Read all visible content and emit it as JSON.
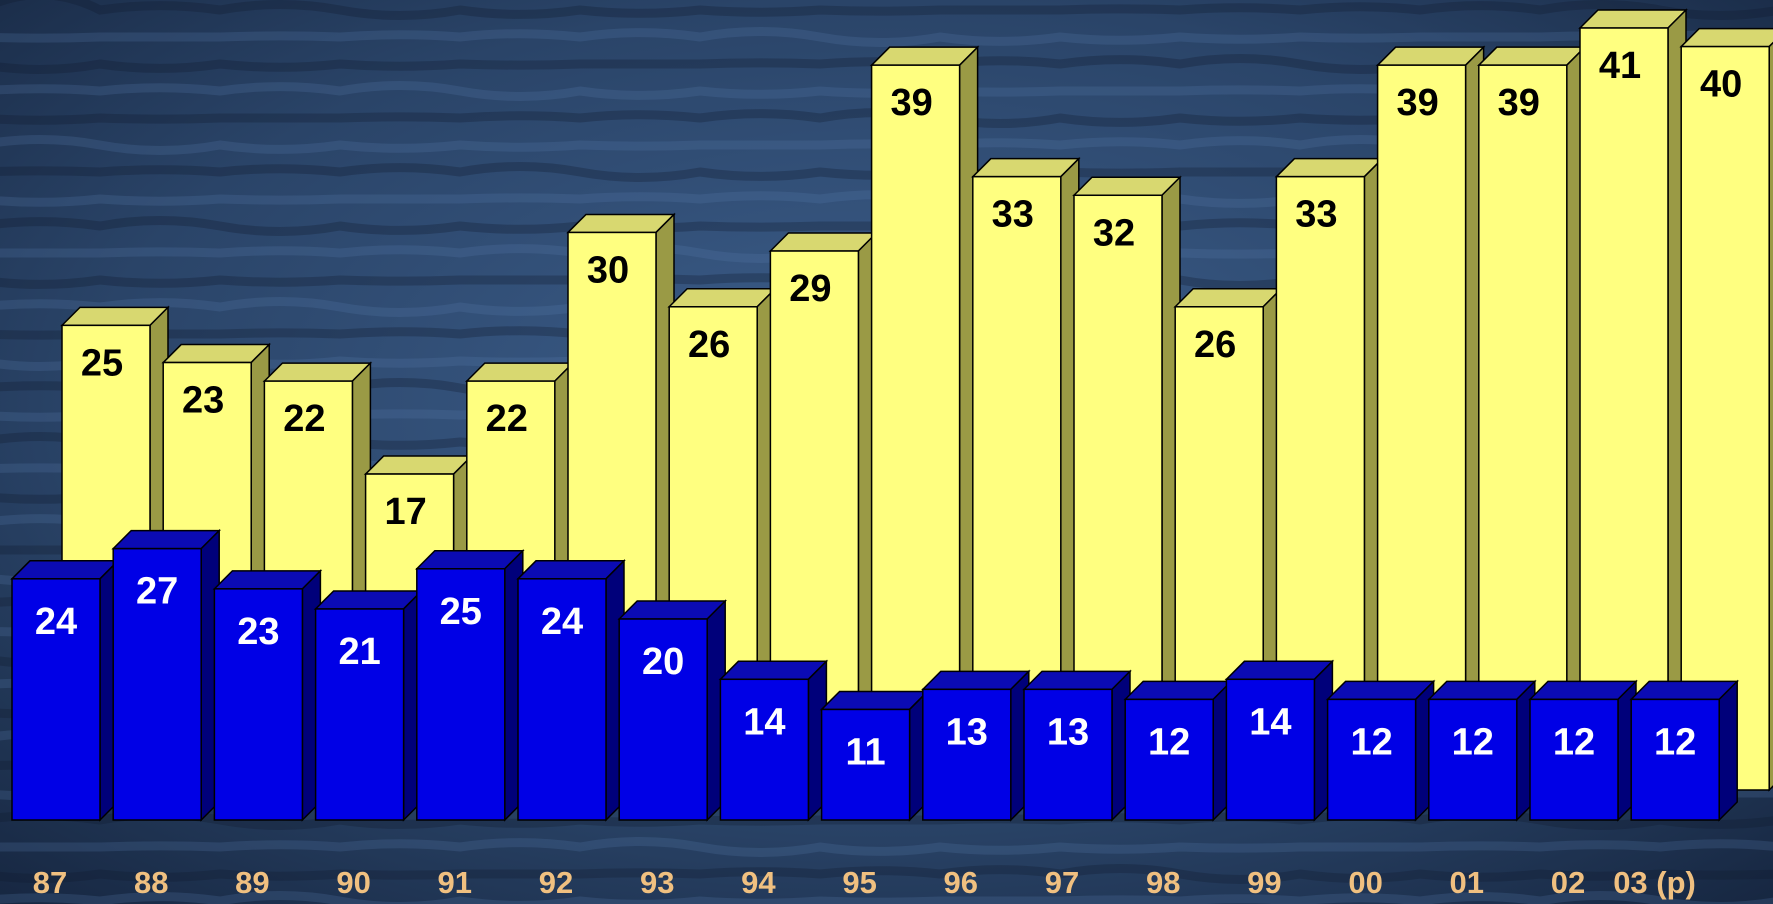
{
  "chart_data": {
    "type": "bar",
    "categories": [
      "87",
      "88",
      "89",
      "90",
      "91",
      "92",
      "93",
      "94",
      "95",
      "96",
      "97",
      "98",
      "99",
      "00",
      "01",
      "02",
      "03 (p)"
    ],
    "series": [
      {
        "values": [
          25,
          23,
          22,
          17,
          22,
          30,
          26,
          29,
          39,
          33,
          32,
          26,
          33,
          39,
          39,
          41,
          40
        ]
      },
      {
        "values": [
          24,
          27,
          23,
          21,
          25,
          24,
          20,
          14,
          11,
          13,
          13,
          12,
          14,
          12,
          12,
          12,
          12
        ]
      }
    ],
    "title": "",
    "xlabel": "",
    "ylabel": "",
    "ylim": [
      0,
      41
    ],
    "grid": false,
    "legend": "none",
    "data_labels": true,
    "colors": {
      "back_series": "#ffff80",
      "back_series_shade": "#9a9a45",
      "back_series_top": "#d8d870",
      "back_series_label": "#000000",
      "front_series": "#0000e6",
      "front_series_shade": "#00007a",
      "front_series_top": "#0b0bb4",
      "front_series_label": "#ffffff",
      "category_label": "#f0c080",
      "background": "#1d2f4c"
    }
  }
}
